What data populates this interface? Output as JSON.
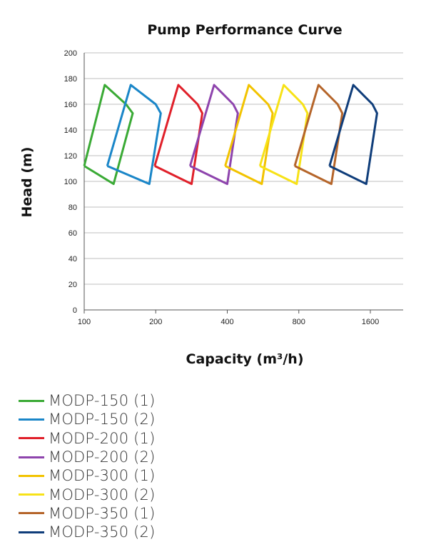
{
  "chart_data": {
    "type": "line",
    "title": "Pump Performance Curve",
    "xlabel": "Capacity (m³/h)",
    "ylabel": "Head (m)",
    "x_scale": "log",
    "x_ticks": [
      "100",
      "200",
      "400",
      "800",
      "1600"
    ],
    "x_tick_values": [
      100,
      200,
      400,
      800,
      1600
    ],
    "ylim": [
      0,
      200
    ],
    "y_ticks": [
      "0",
      "20",
      "40",
      "60",
      "80",
      "100",
      "120",
      "140",
      "160",
      "180",
      "200"
    ],
    "y_tick_values": [
      0,
      20,
      40,
      60,
      80,
      100,
      120,
      140,
      160,
      180,
      200
    ],
    "grid": "horizontal",
    "legend": "bottom-left",
    "series": [
      {
        "name": "MODP-150 (1)",
        "color": "#3aaa35",
        "points": [
          [
            100,
            112
          ],
          [
            122,
            175
          ],
          [
            150,
            160
          ],
          [
            160,
            153
          ],
          [
            133,
            98
          ],
          [
            100,
            112
          ]
        ]
      },
      {
        "name": "MODP-150 (2)",
        "color": "#1a86c8",
        "points": [
          [
            125,
            112
          ],
          [
            157,
            175
          ],
          [
            200,
            160
          ],
          [
            210,
            153
          ],
          [
            188,
            98
          ],
          [
            125,
            112
          ]
        ]
      },
      {
        "name": "MODP-200 (1)",
        "color": "#e0202a",
        "points": [
          [
            198,
            112
          ],
          [
            249,
            175
          ],
          [
            300,
            160
          ],
          [
            314,
            153
          ],
          [
            283,
            98
          ],
          [
            198,
            112
          ]
        ]
      },
      {
        "name": "MODP-200 (2)",
        "color": "#8e44ad",
        "points": [
          [
            279,
            112
          ],
          [
            352,
            175
          ],
          [
            424,
            160
          ],
          [
            443,
            153
          ],
          [
            400,
            98
          ],
          [
            279,
            112
          ]
        ]
      },
      {
        "name": "MODP-300 (1)",
        "color": "#f2c300",
        "points": [
          [
            392,
            112
          ],
          [
            493,
            175
          ],
          [
            594,
            160
          ],
          [
            621,
            153
          ],
          [
            559,
            98
          ],
          [
            392,
            112
          ]
        ]
      },
      {
        "name": "MODP-300 (2)",
        "color": "#f7e217",
        "points": [
          [
            549,
            112
          ],
          [
            691,
            175
          ],
          [
            832,
            160
          ],
          [
            870,
            153
          ],
          [
            784,
            98
          ],
          [
            549,
            112
          ]
        ]
      },
      {
        "name": "MODP-350 (1)",
        "color": "#b5652a",
        "points": [
          [
            769,
            112
          ],
          [
            968,
            175
          ],
          [
            1166,
            160
          ],
          [
            1219,
            153
          ],
          [
            1097,
            98
          ],
          [
            769,
            112
          ]
        ]
      },
      {
        "name": "MODP-350 (2)",
        "color": "#0f3d7a",
        "points": [
          [
            1077,
            112
          ],
          [
            1356,
            175
          ],
          [
            1633,
            160
          ],
          [
            1707,
            153
          ],
          [
            1538,
            98
          ],
          [
            1077,
            112
          ]
        ]
      }
    ]
  }
}
